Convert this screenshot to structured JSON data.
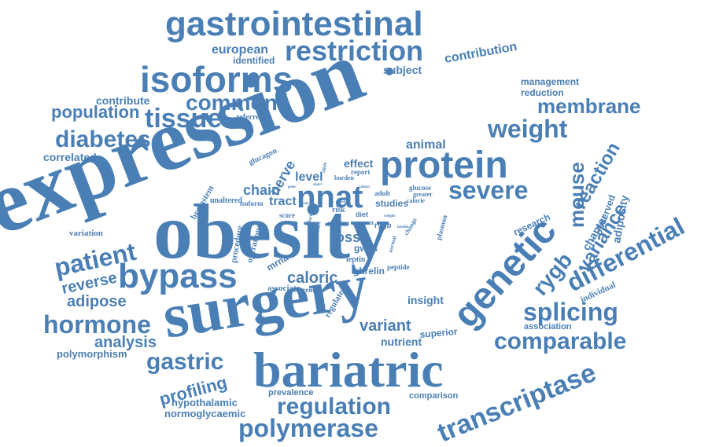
{
  "colors": {
    "word": "#4a7fb5",
    "background": "#ffffff"
  },
  "words": [
    "expression",
    "obesity",
    "surgery",
    "bariatric",
    "gastrointestinal",
    "isoforms",
    "protein",
    "genetic",
    "bypass",
    "restriction",
    "tissue",
    "diabetes",
    "weight",
    "severe",
    "membrane",
    "nnat",
    "differential",
    "transcriptase",
    "comparable",
    "polymerase",
    "regulation",
    "gastric",
    "hormone",
    "patient",
    "splicing",
    "mouse",
    "rygb",
    "variance",
    "reaction",
    "common",
    "population",
    "caloric",
    "variant",
    "analysis",
    "reverse",
    "adipose",
    "profiling",
    "european",
    "contribution",
    "loss",
    "chain",
    "nerve",
    "level",
    "tract",
    "animal",
    "correlated",
    "contribute",
    "subject",
    "identified",
    "management",
    "reduction",
    "effect",
    "chapter",
    "observed",
    "adiposity",
    "insight",
    "nutrient",
    "superior",
    "association",
    "individual",
    "research",
    "polymorphism",
    "hypothalamic",
    "normoglycaemic",
    "prevalence",
    "comparison",
    "associate",
    "regulate",
    "ghrelin",
    "peptide",
    "leptin",
    "gwas",
    "mrna",
    "operation",
    "procedure",
    "variation",
    "brainstem",
    "unaltered",
    "isoform",
    "score",
    "extreme",
    "risk",
    "diet",
    "result",
    "rygb",
    "studies",
    "adult",
    "glucose",
    "greater",
    "calorie",
    "burden",
    "report",
    "glucagon",
    "referred",
    "change",
    "plasmon",
    "normal",
    "clinic",
    "future",
    "factor",
    "allele",
    "rate",
    "food",
    "basal",
    "insulin",
    "weight",
    "gene",
    "short",
    "cohort",
    "mass"
  ]
}
